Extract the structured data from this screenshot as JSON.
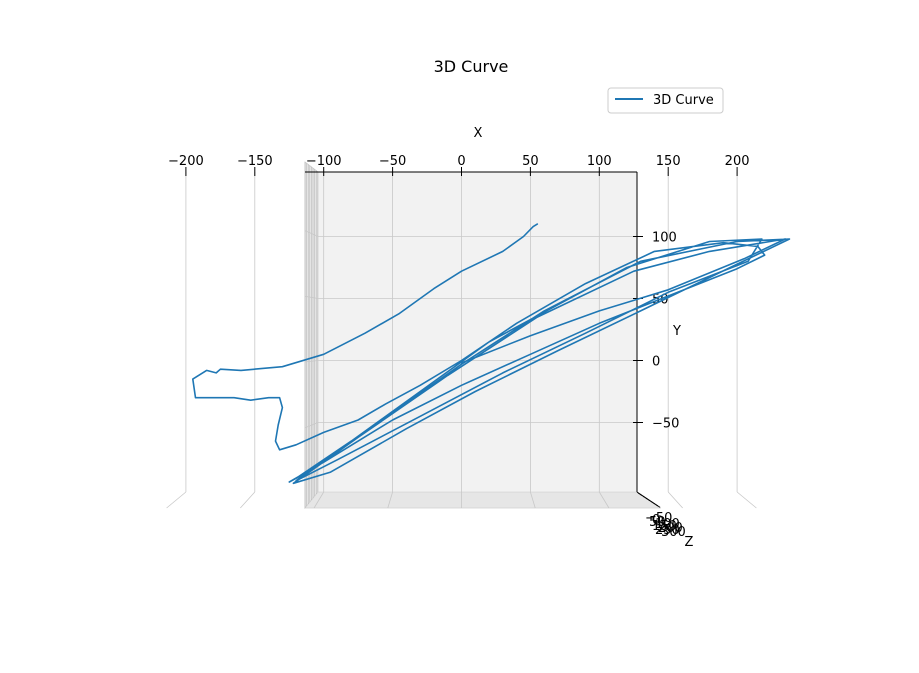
{
  "chart_data": {
    "type": "line",
    "title": "3D Curve",
    "xlabel": "X",
    "ylabel": "Y",
    "zlabel": "Z",
    "legend": {
      "entries": [
        "3D Curve"
      ],
      "placement": "top-right"
    },
    "grid": true,
    "x_ticks": [
      "−200",
      "−150",
      "−100",
      "−50",
      "0",
      "50",
      "100",
      "150",
      "200"
    ],
    "y_ticks": [
      "100",
      "50",
      "0",
      "−50"
    ],
    "z_ticks": [
      "50",
      "100",
      "150",
      "200",
      "250",
      "300"
    ],
    "z_ticks_printed": [
      "−50",
      "0",
      "50",
      "100",
      "150",
      "200",
      "250",
      "300"
    ],
    "xlim": [
      -210,
      255
    ],
    "ylim": [
      -105,
      140
    ],
    "series": [
      {
        "name": "3D Curve",
        "color": "#1f77b4",
        "points": [
          [
            55,
            110
          ],
          [
            52,
            108
          ],
          [
            45,
            100
          ],
          [
            30,
            88
          ],
          [
            0,
            72
          ],
          [
            -20,
            58
          ],
          [
            -45,
            38
          ],
          [
            -70,
            22
          ],
          [
            -100,
            5
          ],
          [
            -130,
            -5
          ],
          [
            -160,
            -8
          ],
          [
            -175,
            -7
          ],
          [
            -178,
            -10
          ],
          [
            -185,
            -8
          ],
          [
            -195,
            -15
          ],
          [
            -193,
            -30
          ],
          [
            -182,
            -30
          ],
          [
            -165,
            -30
          ],
          [
            -153,
            -32
          ],
          [
            -140,
            -30
          ],
          [
            -132,
            -30
          ],
          [
            -130,
            -38
          ],
          [
            -133,
            -52
          ],
          [
            -135,
            -65
          ],
          [
            -132,
            -72
          ],
          [
            -120,
            -68
          ],
          [
            -100,
            -58
          ],
          [
            -75,
            -48
          ],
          [
            -55,
            -35
          ],
          [
            -30,
            -20
          ],
          [
            0,
            0
          ],
          [
            40,
            30
          ],
          [
            90,
            62
          ],
          [
            140,
            88
          ],
          [
            190,
            95
          ],
          [
            215,
            92
          ],
          [
            220,
            85
          ],
          [
            200,
            74
          ],
          [
            150,
            52
          ],
          [
            100,
            30
          ],
          [
            50,
            5
          ],
          [
            0,
            -20
          ],
          [
            -50,
            -48
          ],
          [
            -100,
            -82
          ],
          [
            -125,
            -98
          ],
          [
            -120,
            -95
          ],
          [
            -80,
            -65
          ],
          [
            -30,
            -25
          ],
          [
            20,
            15
          ],
          [
            70,
            45
          ],
          [
            120,
            75
          ],
          [
            180,
            96
          ],
          [
            218,
            98
          ],
          [
            208,
            80
          ],
          [
            150,
            55
          ],
          [
            90,
            22
          ],
          [
            30,
            -10
          ],
          [
            -30,
            -45
          ],
          [
            -90,
            -80
          ],
          [
            -120,
            -97
          ],
          [
            -110,
            -88
          ],
          [
            -60,
            -50
          ],
          [
            0,
            -3
          ],
          [
            60,
            40
          ],
          [
            130,
            80
          ],
          [
            200,
            96
          ],
          [
            238,
            98
          ],
          [
            195,
            75
          ],
          [
            130,
            40
          ],
          [
            70,
            8
          ],
          [
            10,
            -25
          ],
          [
            -40,
            -55
          ],
          [
            -95,
            -90
          ],
          [
            -122,
            -99
          ],
          [
            -75,
            -62
          ],
          [
            -10,
            -12
          ],
          [
            55,
            35
          ],
          [
            125,
            72
          ],
          [
            180,
            88
          ],
          [
            235,
            98
          ],
          [
            205,
            82
          ],
          [
            150,
            57
          ],
          [
            100,
            40
          ],
          [
            50,
            20
          ],
          [
            0,
            -2
          ]
        ]
      }
    ]
  }
}
